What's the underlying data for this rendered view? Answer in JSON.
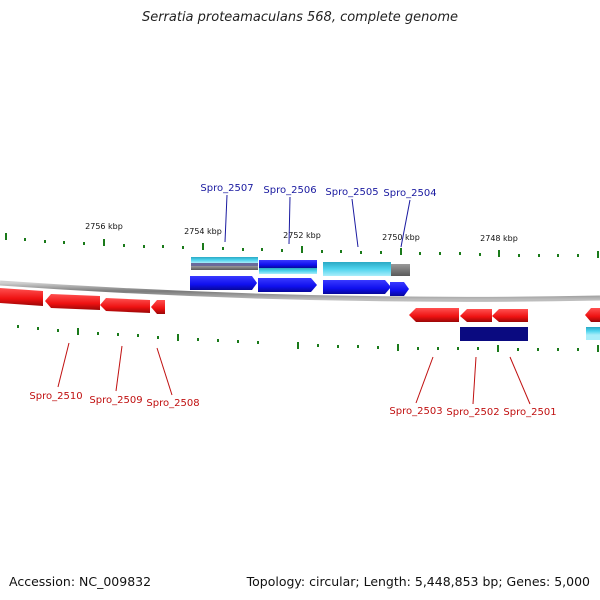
{
  "title": "Serratia proteamaculans 568, complete genome",
  "footer": {
    "accession": "Accession: NC_009832",
    "summary": "Topology: circular; Length: 5,448,853 bp; Genes: 5,000"
  },
  "ruler": {
    "labels": [
      "2756 kbp",
      "2754 kbp",
      "2752 kbp",
      "2750 kbp",
      "2748 kbp"
    ]
  },
  "genes": {
    "top": [
      "Spro_2507",
      "Spro_2506",
      "Spro_2505",
      "Spro_2504"
    ],
    "bottom": [
      "Spro_2510",
      "Spro_2509",
      "Spro_2508",
      "Spro_2503",
      "Spro_2502",
      "Spro_2501"
    ]
  },
  "colors": {
    "forward_gene": "#1010ee",
    "reverse_gene": "#ee1111",
    "cds_cyan": "#33c6e6",
    "rna_gray": "#808080",
    "dark_navy": "#0a0a80",
    "tick_green": "#1a7a1a",
    "backbone": "#808080"
  }
}
